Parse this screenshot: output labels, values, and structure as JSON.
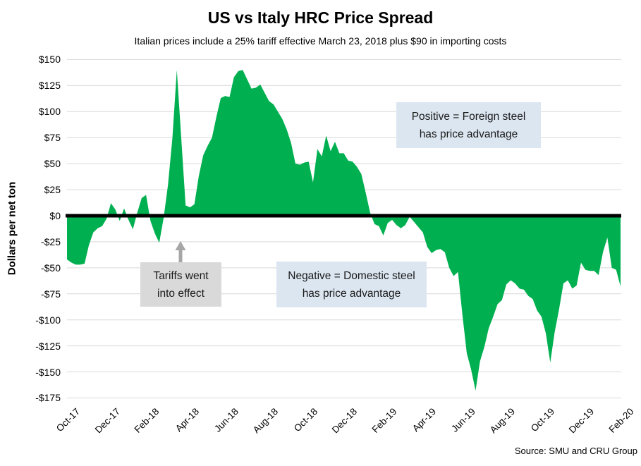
{
  "title": "US vs Italy HRC Price Spread",
  "subtitle": "Italian prices include a 25% tariff effective March 23, 2018 plus $90 in importing costs",
  "source": "Source: SMU and CRU Group",
  "y_axis": {
    "label": "Dollars per net ton",
    "ticks": [
      {
        "label": "$150",
        "value": 150
      },
      {
        "label": "$125",
        "value": 125
      },
      {
        "label": "$100",
        "value": 100
      },
      {
        "label": "$75",
        "value": 75
      },
      {
        "label": "$50",
        "value": 50
      },
      {
        "label": "$25",
        "value": 25
      },
      {
        "label": "$0",
        "value": 0
      },
      {
        "label": "-$25",
        "value": -25
      },
      {
        "label": "-$50",
        "value": -50
      },
      {
        "label": "-$75",
        "value": -75
      },
      {
        "label": "-$100",
        "value": -100
      },
      {
        "label": "-$125",
        "value": -125
      },
      {
        "label": "-$150",
        "value": -150
      },
      {
        "label": "-$175",
        "value": -175
      }
    ]
  },
  "x_axis": {
    "ticks": [
      "Oct-17",
      "Dec-17",
      "Feb-18",
      "Apr-18",
      "Jun-18",
      "Aug-18",
      "Oct-18",
      "Dec-18",
      "Feb-19",
      "Apr-19",
      "Jun-19",
      "Aug-19",
      "Oct-19",
      "Dec-19",
      "Feb-20"
    ]
  },
  "annotations": {
    "positive": {
      "line1": "Positive = Foreign steel",
      "line2": "has price advantage"
    },
    "negative": {
      "line1": "Negative = Domestic steel",
      "line2": "has price advantage"
    },
    "tariff": {
      "line1": "Tariffs went",
      "line2": "into effect"
    }
  },
  "colors": {
    "area_green": "#00B050",
    "zero_line": "#000000",
    "gridline": "#D9D9D9",
    "annotation_blue_bg": "#DCE6F1",
    "annotation_gray_bg": "#D9D9D9",
    "arrow_gray": "#A6A6A6"
  },
  "chart_data": {
    "type": "area",
    "title": "US vs Italy HRC Price Spread",
    "ylabel": "Dollars per net ton",
    "ylim": [
      -175,
      150
    ],
    "y_tick_step": 25,
    "baseline": 0,
    "grid": "horizontal",
    "legend": "none",
    "x_range": [
      "Oct-17",
      "Feb-20"
    ],
    "x_tick_labels": [
      "Oct-17",
      "Dec-17",
      "Feb-18",
      "Apr-18",
      "Jun-18",
      "Aug-18",
      "Oct-18",
      "Dec-18",
      "Feb-19",
      "Apr-19",
      "Jun-19",
      "Aug-19",
      "Oct-19",
      "Dec-19",
      "Feb-20"
    ],
    "series": [
      {
        "name": "US minus Italy HRC price spread",
        "unit": "dollars per net ton",
        "frequency": "weekly",
        "values": [
          -42,
          -45,
          -47,
          -47,
          -46,
          -28,
          -16,
          -12,
          -10,
          -3,
          12,
          6,
          -5,
          7,
          -4,
          -13,
          3,
          17,
          20,
          -5,
          -17,
          -26,
          -2,
          30,
          75,
          140,
          75,
          10,
          8,
          11,
          38,
          58,
          67,
          75,
          95,
          113,
          115,
          114,
          133,
          139,
          140,
          131,
          122,
          123,
          126,
          118,
          110,
          107,
          100,
          93,
          83,
          70,
          50,
          49,
          51,
          52,
          32,
          64,
          57,
          77,
          62,
          71,
          60,
          60,
          53,
          52,
          47,
          40,
          22,
          3,
          -8,
          -10,
          -19,
          -7,
          -4,
          -9,
          -12,
          -9,
          -1,
          -6,
          -11,
          -16,
          -30,
          -36,
          -33,
          -32,
          -35,
          -50,
          -58,
          -54,
          -95,
          -132,
          -148,
          -168,
          -140,
          -126,
          -108,
          -97,
          -85,
          -81,
          -66,
          -62,
          -65,
          -70,
          -71,
          -77,
          -80,
          -91,
          -97,
          -113,
          -141,
          -112,
          -90,
          -65,
          -62,
          -70,
          -67,
          -45,
          -52,
          -53,
          -53,
          -57,
          -35,
          -21,
          -50,
          -52,
          -68
        ]
      }
    ],
    "notable_points": {
      "tariff_spike_peak": 140,
      "aug_2018_peak": 140,
      "jul_2019_trough": -168,
      "oct_2019_trough": -141,
      "last_value": -68
    }
  }
}
